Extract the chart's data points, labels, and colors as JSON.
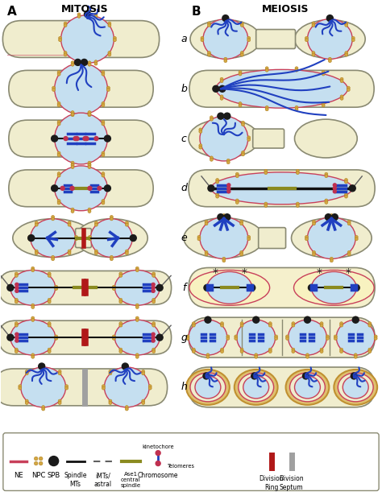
{
  "title_mitosis": "MITOSIS",
  "title_meiosis": "MEIOSIS",
  "label_A": "A",
  "label_B": "B",
  "row_labels": [
    "a",
    "b",
    "c",
    "d",
    "e",
    "f",
    "g",
    "h"
  ],
  "cell_bg": "#f0edce",
  "nucleus_bg": "#c5dff0",
  "ne_color": "#c8405a",
  "spb_color": "#1a1a1a",
  "npc_color_fill": "#d4a843",
  "npc_color_edge": "#b08020",
  "chromosome_color": "#2040c0",
  "telomere_color": "#c03050",
  "spindle_color": "#111111",
  "ase1_color": "#8a8a20",
  "div_ring_color": "#b01818",
  "div_septum_color": "#a0a0a0",
  "outer_cell_fill": "#f0edce",
  "outer_cell_edge": "#8a8a72",
  "fig_width": 4.74,
  "fig_height": 6.16,
  "dpi": 100
}
